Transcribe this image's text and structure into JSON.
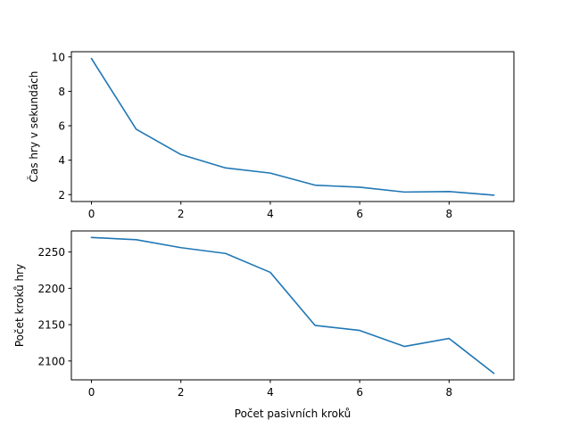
{
  "chart_data": [
    {
      "type": "line",
      "title": "",
      "xlabel": "",
      "ylabel": "Čas hry v sekundách",
      "x": [
        0,
        1,
        2,
        3,
        4,
        5,
        6,
        7,
        8,
        9
      ],
      "series": [
        {
          "values": [
            9.9,
            5.8,
            4.33,
            3.55,
            3.25,
            2.55,
            2.43,
            2.15,
            2.18,
            1.97
          ]
        }
      ],
      "xlim": [
        -0.45,
        9.45
      ],
      "ylim": [
        1.6,
        10.3
      ],
      "xticks": [
        0,
        2,
        4,
        6,
        8
      ],
      "yticks": [
        2,
        4,
        6,
        8,
        10
      ],
      "grid": false,
      "color": "#1f77b4"
    },
    {
      "type": "line",
      "title": "",
      "xlabel": "Počet pasivních kroků",
      "ylabel": "Počet kroků hry",
      "x": [
        0,
        1,
        2,
        3,
        4,
        5,
        6,
        7,
        8,
        9
      ],
      "series": [
        {
          "values": [
            2270,
            2267,
            2256,
            2248,
            2222,
            2149,
            2142,
            2120,
            2131,
            2083
          ]
        }
      ],
      "xlim": [
        -0.45,
        9.45
      ],
      "ylim": [
        2074,
        2279
      ],
      "xticks": [
        0,
        2,
        4,
        6,
        8
      ],
      "yticks": [
        2100,
        2150,
        2200,
        2250
      ],
      "grid": false,
      "color": "#1f77b4"
    }
  ]
}
